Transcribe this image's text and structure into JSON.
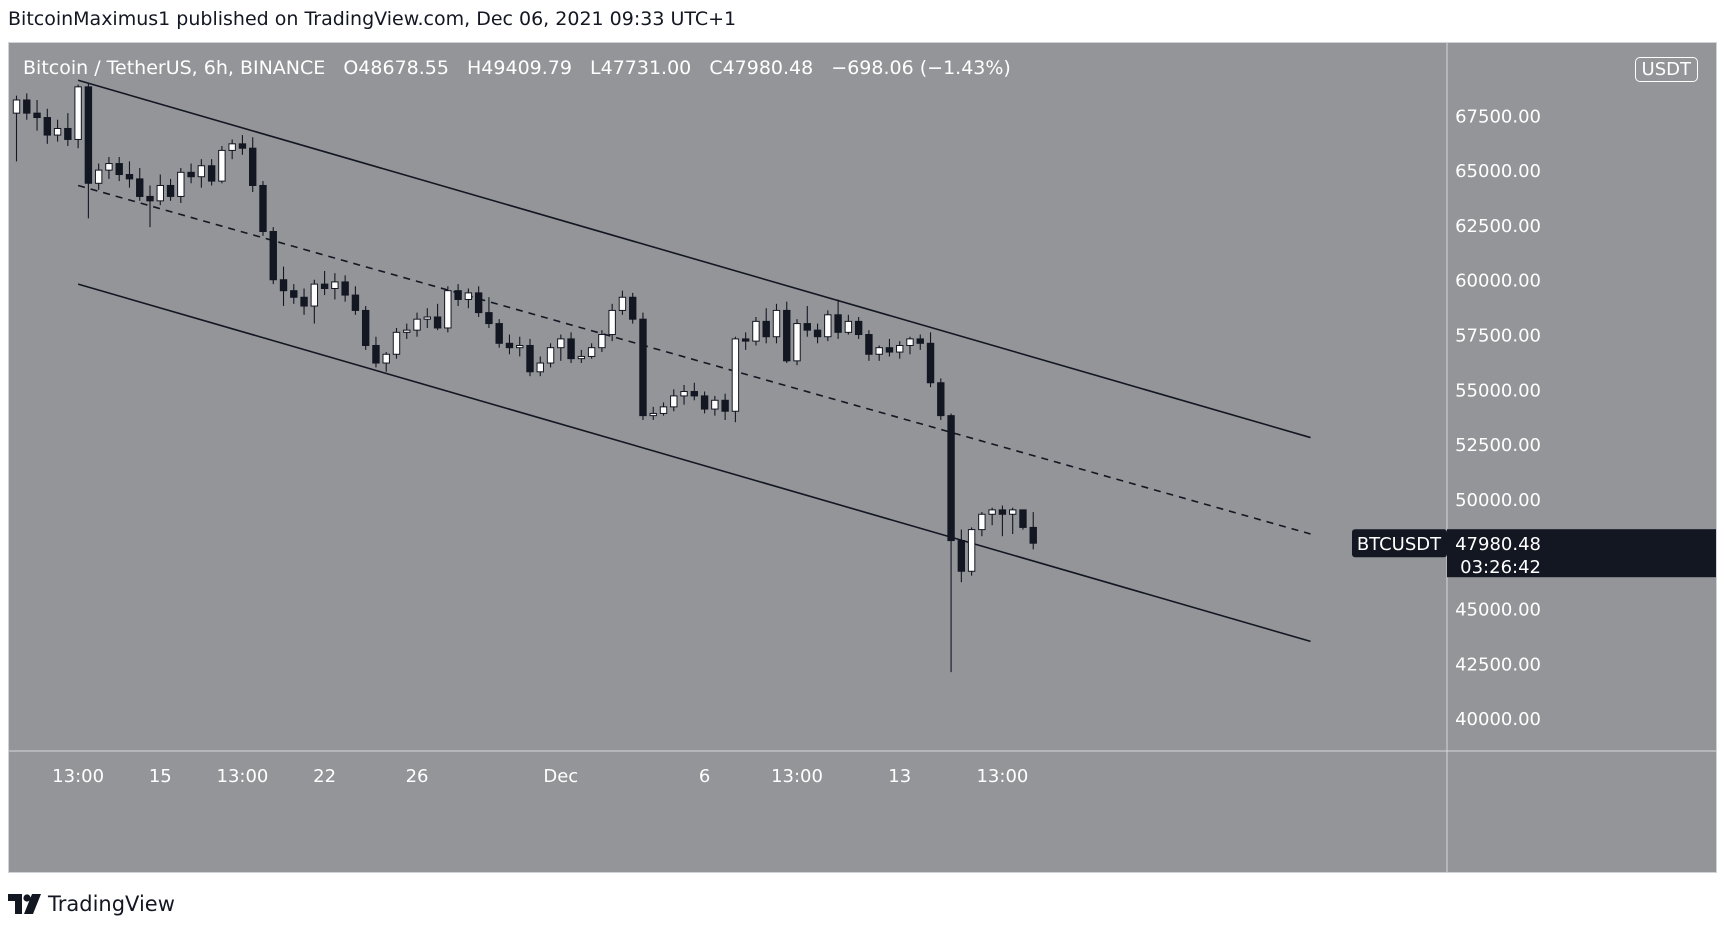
{
  "header": {
    "published": "BitcoinMaximus1 published on TradingView.com, Dec 06, 2021 09:33 UTC+1"
  },
  "legend": {
    "symbol": "Bitcoin / TetherUS, 6h, BINANCE",
    "open": "O48678.55",
    "high": "H49409.79",
    "low": "L47731.00",
    "close": "C47980.48",
    "change": "−698.06 (−1.43%)"
  },
  "currency_badge": "USDT",
  "footer": {
    "brand": "TradingView"
  },
  "colors": {
    "background": "#939598",
    "bull_candle": "#ffffff",
    "bear_candle": "#131722",
    "channel": "#131722",
    "axis_text": "#ffffff"
  },
  "chart_data": {
    "type": "candlestick",
    "symbol": "BTCUSDT",
    "timeframe": "6h",
    "exchange": "BINANCE",
    "ylim": [
      38500,
      70800
    ],
    "y_ticks": [
      40000,
      42500,
      45000,
      47500,
      50000,
      52500,
      55000,
      57500,
      60000,
      62500,
      65000,
      67500
    ],
    "y_tick_labels": [
      "40000.00",
      "42500.00",
      "45000.00",
      "",
      "50000.00",
      "52500.00",
      "55000.00",
      "57500.00",
      "60000.00",
      "62500.00",
      "65000.00",
      "67500.00"
    ],
    "x_tick_labels": [
      {
        "label": "13:00",
        "i": 6
      },
      {
        "label": "15",
        "i": 14
      },
      {
        "label": "13:00",
        "i": 22
      },
      {
        "label": "22",
        "i": 30
      },
      {
        "label": "26",
        "i": 39
      },
      {
        "label": "Dec",
        "i": 53
      },
      {
        "label": "6",
        "i": 67
      },
      {
        "label": "13:00",
        "i": 76
      },
      {
        "label": "13",
        "i": 86
      },
      {
        "label": "13:00",
        "i": 96
      }
    ],
    "last_price": {
      "symbol": "BTCUSDT",
      "value": "47980.48",
      "countdown": "03:26:42"
    },
    "candles": [
      [
        67600,
        68400,
        65400,
        68200
      ],
      [
        68200,
        68500,
        67300,
        67600
      ],
      [
        67600,
        68200,
        66800,
        67400
      ],
      [
        67400,
        67800,
        66200,
        66600
      ],
      [
        66600,
        67300,
        66300,
        66900
      ],
      [
        66900,
        67600,
        66100,
        66400
      ],
      [
        66400,
        68900,
        66000,
        68800
      ],
      [
        68800,
        69000,
        62800,
        64400
      ],
      [
        64400,
        65300,
        64100,
        65000
      ],
      [
        65000,
        65600,
        64600,
        65300
      ],
      [
        65300,
        65600,
        64500,
        64800
      ],
      [
        64800,
        65400,
        64200,
        64600
      ],
      [
        64600,
        65100,
        63600,
        63800
      ],
      [
        63800,
        64300,
        62400,
        63600
      ],
      [
        63600,
        64800,
        63400,
        64300
      ],
      [
        64300,
        64600,
        63600,
        63800
      ],
      [
        63800,
        65100,
        63500,
        64900
      ],
      [
        64900,
        65300,
        64400,
        64700
      ],
      [
        64700,
        65500,
        64200,
        65200
      ],
      [
        65200,
        65500,
        64300,
        64500
      ],
      [
        64500,
        66100,
        64400,
        65900
      ],
      [
        65900,
        66400,
        65500,
        66200
      ],
      [
        66200,
        66600,
        65700,
        66000
      ],
      [
        66000,
        66500,
        64000,
        64300
      ],
      [
        64300,
        64500,
        62000,
        62200
      ],
      [
        62200,
        62400,
        59800,
        60000
      ],
      [
        60000,
        60600,
        58800,
        59500
      ],
      [
        59500,
        59800,
        58900,
        59200
      ],
      [
        59200,
        59600,
        58400,
        58800
      ],
      [
        58800,
        60000,
        58000,
        59800
      ],
      [
        59800,
        60400,
        59300,
        59600
      ],
      [
        59600,
        60300,
        59100,
        59900
      ],
      [
        59900,
        60200,
        59000,
        59300
      ],
      [
        59300,
        59700,
        58400,
        58600
      ],
      [
        58600,
        58800,
        56800,
        57000
      ],
      [
        57000,
        57400,
        56000,
        56200
      ],
      [
        56200,
        56700,
        55800,
        56600
      ],
      [
        56600,
        57800,
        56400,
        57600
      ],
      [
        57600,
        58000,
        57300,
        57700
      ],
      [
        57700,
        58500,
        57400,
        58200
      ],
      [
        58200,
        58700,
        57800,
        58300
      ],
      [
        58300,
        58900,
        57700,
        57800
      ],
      [
        57800,
        59700,
        57600,
        59500
      ],
      [
        59500,
        59800,
        58800,
        59100
      ],
      [
        59100,
        59600,
        58700,
        59400
      ],
      [
        59400,
        59700,
        58300,
        58500
      ],
      [
        58500,
        59200,
        57800,
        58000
      ],
      [
        58000,
        58200,
        56900,
        57100
      ],
      [
        57100,
        57500,
        56600,
        56900
      ],
      [
        56900,
        57400,
        56500,
        57000
      ],
      [
        57000,
        57300,
        55600,
        55800
      ],
      [
        55800,
        56500,
        55600,
        56200
      ],
      [
        56200,
        57100,
        56000,
        56900
      ],
      [
        56900,
        57500,
        56300,
        57300
      ],
      [
        57300,
        57600,
        56200,
        56400
      ],
      [
        56400,
        56800,
        56200,
        56500
      ],
      [
        56500,
        57100,
        56400,
        56900
      ],
      [
        56900,
        57700,
        56700,
        57500
      ],
      [
        57500,
        58900,
        57200,
        58600
      ],
      [
        58600,
        59500,
        58400,
        59200
      ],
      [
        59200,
        59400,
        58000,
        58200
      ],
      [
        58200,
        58500,
        53600,
        53800
      ],
      [
        53800,
        54200,
        53600,
        53900
      ],
      [
        53900,
        54400,
        53800,
        54200
      ],
      [
        54200,
        55000,
        54000,
        54700
      ],
      [
        54700,
        55200,
        54300,
        54900
      ],
      [
        54900,
        55300,
        54500,
        54700
      ],
      [
        54700,
        54900,
        53900,
        54100
      ],
      [
        54100,
        54700,
        53800,
        54500
      ],
      [
        54500,
        54800,
        53600,
        54000
      ],
      [
        54000,
        57400,
        53500,
        57300
      ],
      [
        57300,
        57600,
        56800,
        57200
      ],
      [
        57200,
        58300,
        57000,
        58100
      ],
      [
        58100,
        58700,
        57100,
        57400
      ],
      [
        57400,
        58900,
        57100,
        58600
      ],
      [
        58600,
        59000,
        56200,
        56300
      ],
      [
        56300,
        58200,
        56100,
        58000
      ],
      [
        58000,
        58800,
        57400,
        57700
      ],
      [
        57700,
        58000,
        57100,
        57400
      ],
      [
        57400,
        58600,
        57200,
        58400
      ],
      [
        58400,
        59100,
        57300,
        57600
      ],
      [
        57600,
        58400,
        57500,
        58100
      ],
      [
        58100,
        58300,
        57300,
        57500
      ],
      [
        57500,
        57700,
        56300,
        56600
      ],
      [
        56600,
        57000,
        56300,
        56900
      ],
      [
        56900,
        57300,
        56500,
        56700
      ],
      [
        56700,
        57200,
        56400,
        57000
      ],
      [
        57000,
        57400,
        56600,
        57300
      ],
      [
        57300,
        57500,
        56800,
        57100
      ],
      [
        57100,
        57600,
        55100,
        55300
      ],
      [
        55300,
        55500,
        53600,
        53800
      ],
      [
        53800,
        53900,
        42100,
        48100
      ],
      [
        48100,
        48600,
        46200,
        46700
      ],
      [
        46700,
        48700,
        46500,
        48600
      ],
      [
        48600,
        49400,
        48300,
        49300
      ],
      [
        49300,
        49600,
        48800,
        49500
      ],
      [
        49500,
        49700,
        48300,
        49300
      ],
      [
        49300,
        49600,
        48400,
        49500
      ],
      [
        49500,
        49500,
        48600,
        48700
      ],
      [
        48700,
        49400,
        47700,
        47980
      ]
    ],
    "channel": {
      "upper": {
        "from": {
          "i": 6,
          "price": 69100
        },
        "to": {
          "i": 126,
          "price": 52800
        }
      },
      "middle": {
        "from": {
          "i": 6,
          "price": 64300
        },
        "to": {
          "i": 126,
          "price": 48400
        }
      },
      "lower": {
        "from": {
          "i": 6,
          "price": 59800
        },
        "to": {
          "i": 126,
          "price": 43500
        }
      }
    }
  }
}
